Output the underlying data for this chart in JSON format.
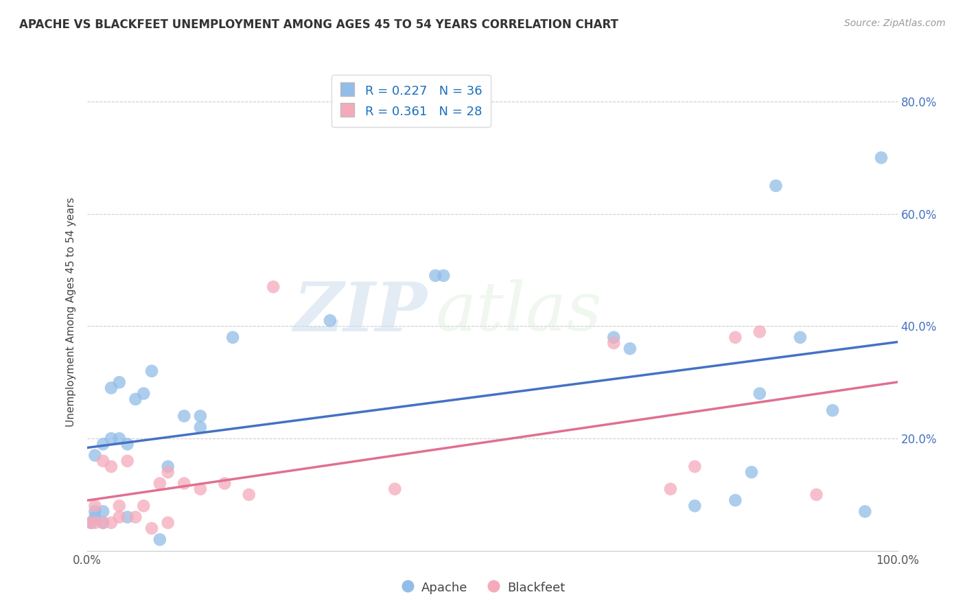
{
  "title": "APACHE VS BLACKFEET UNEMPLOYMENT AMONG AGES 45 TO 54 YEARS CORRELATION CHART",
  "source": "Source: ZipAtlas.com",
  "ylabel": "Unemployment Among Ages 45 to 54 years",
  "xlim": [
    0.0,
    1.0
  ],
  "ylim": [
    0.0,
    0.85
  ],
  "x_ticks": [
    0.0,
    0.1,
    0.2,
    0.3,
    0.4,
    0.5,
    0.6,
    0.7,
    0.8,
    0.9,
    1.0
  ],
  "x_tick_labels": [
    "0.0%",
    "",
    "",
    "",
    "",
    "",
    "",
    "",
    "",
    "",
    "100.0%"
  ],
  "y_ticks": [
    0.0,
    0.2,
    0.4,
    0.6,
    0.8
  ],
  "y_tick_labels_left": [
    "",
    "",
    "",
    "",
    ""
  ],
  "y_tick_labels_right": [
    "",
    "20.0%",
    "40.0%",
    "60.0%",
    "80.0%"
  ],
  "apache_color": "#92BDE8",
  "blackfeet_color": "#F5AABB",
  "apache_R": 0.227,
  "apache_N": 36,
  "blackfeet_R": 0.361,
  "blackfeet_N": 28,
  "apache_line_color": "#4472C4",
  "blackfeet_line_color": "#E07090",
  "legend_apache_label": "Apache",
  "legend_blackfeet_label": "Blackfeet",
  "watermark_zip": "ZIP",
  "watermark_atlas": "atlas",
  "apache_x": [
    0.005,
    0.01,
    0.01,
    0.01,
    0.02,
    0.02,
    0.02,
    0.03,
    0.03,
    0.04,
    0.04,
    0.05,
    0.05,
    0.06,
    0.07,
    0.08,
    0.09,
    0.1,
    0.12,
    0.14,
    0.14,
    0.18,
    0.3,
    0.43,
    0.44,
    0.65,
    0.67,
    0.75,
    0.8,
    0.82,
    0.83,
    0.85,
    0.88,
    0.92,
    0.96,
    0.98
  ],
  "apache_y": [
    0.05,
    0.06,
    0.07,
    0.17,
    0.05,
    0.07,
    0.19,
    0.2,
    0.29,
    0.2,
    0.3,
    0.06,
    0.19,
    0.27,
    0.28,
    0.32,
    0.02,
    0.15,
    0.24,
    0.22,
    0.24,
    0.38,
    0.41,
    0.49,
    0.49,
    0.38,
    0.36,
    0.08,
    0.09,
    0.14,
    0.28,
    0.65,
    0.38,
    0.25,
    0.07,
    0.7
  ],
  "blackfeet_x": [
    0.005,
    0.01,
    0.01,
    0.02,
    0.02,
    0.03,
    0.03,
    0.04,
    0.04,
    0.05,
    0.06,
    0.07,
    0.08,
    0.09,
    0.1,
    0.1,
    0.12,
    0.14,
    0.17,
    0.2,
    0.23,
    0.38,
    0.65,
    0.72,
    0.75,
    0.8,
    0.83,
    0.9
  ],
  "blackfeet_y": [
    0.05,
    0.05,
    0.08,
    0.05,
    0.16,
    0.05,
    0.15,
    0.06,
    0.08,
    0.16,
    0.06,
    0.08,
    0.04,
    0.12,
    0.05,
    0.14,
    0.12,
    0.11,
    0.12,
    0.1,
    0.47,
    0.11,
    0.37,
    0.11,
    0.15,
    0.38,
    0.39,
    0.1
  ]
}
